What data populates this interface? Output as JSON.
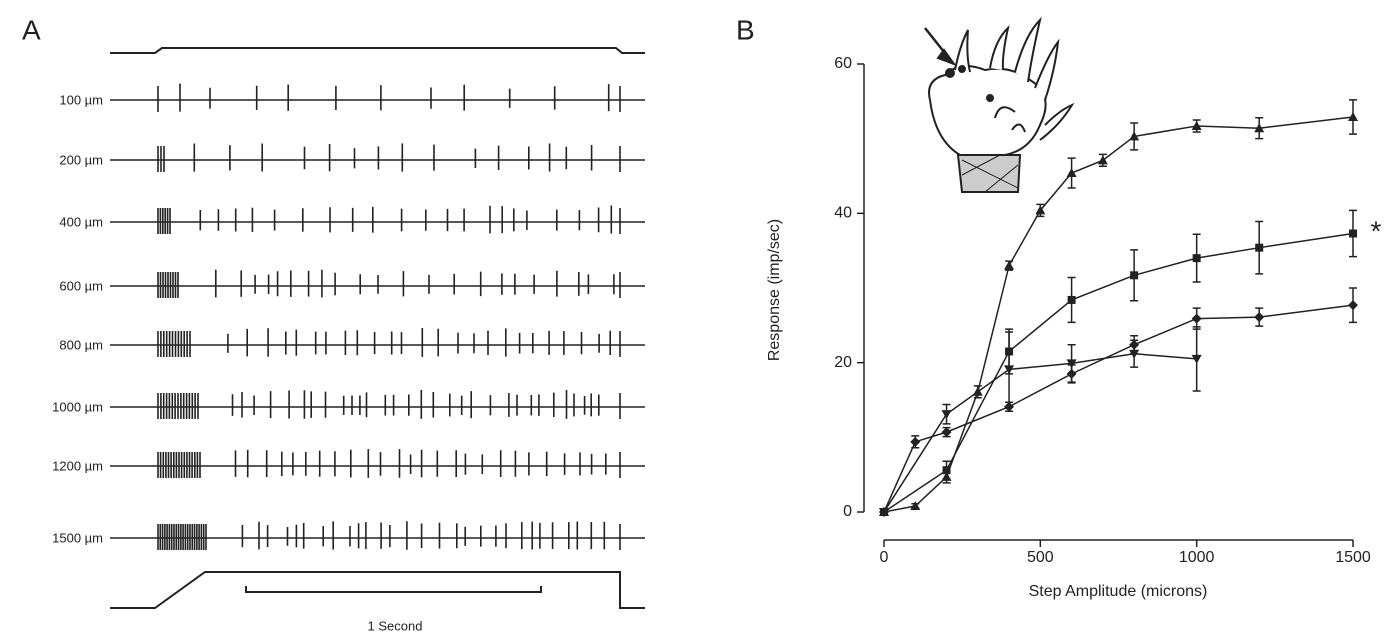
{
  "panel_a": {
    "label": "A",
    "traces": [
      "100 µm",
      "200 µm",
      "400 µm",
      "600 µm",
      "800 µm",
      "1000 µm",
      "1200 µm",
      "1500 µm"
    ],
    "scale_bar": "1 Second"
  },
  "chart_data": {
    "type": "line",
    "panel_label": "B",
    "x_label": "Step Amplitude (microns)",
    "y_label": "Response (imp/sec)",
    "annotation": "*",
    "xlim": [
      0,
      1500
    ],
    "xticks": [
      0,
      500,
      1000,
      1500
    ],
    "ylim": [
      0,
      60
    ],
    "yticks": [
      0,
      20,
      40,
      60
    ],
    "series": [
      {
        "marker": "triangle",
        "color": "#222222",
        "x": [
          0,
          100,
          200,
          300,
          400,
          500,
          600,
          700,
          800,
          1000,
          1200,
          1500
        ],
        "values": [
          0,
          0.8,
          4.7,
          16.1,
          33,
          40.4,
          45.4,
          47.1,
          50.3,
          51.7,
          51.4,
          52.9
        ],
        "errors": [
          0.3,
          0.3,
          0.8,
          0.8,
          0.6,
          0.8,
          2,
          0.8,
          1.8,
          0.8,
          1.4,
          2.3
        ]
      },
      {
        "marker": "square",
        "color": "#222222",
        "x": [
          0,
          200,
          400,
          600,
          800,
          1000,
          1200,
          1500
        ],
        "values": [
          0,
          5.6,
          21.5,
          28.4,
          31.7,
          34,
          35.4,
          37.3
        ],
        "errors": [
          0.3,
          1.2,
          3,
          3,
          3.4,
          3.2,
          3.5,
          3.1
        ]
      },
      {
        "marker": "diamond",
        "color": "#222222",
        "x": [
          0,
          100,
          200,
          400,
          600,
          800,
          1000,
          1200,
          1500
        ],
        "values": [
          0,
          9.4,
          10.7,
          14.1,
          18.5,
          22.4,
          25.9,
          26.1,
          27.7
        ],
        "errors": [
          0.3,
          0.8,
          0.6,
          0.6,
          1.2,
          1.2,
          1.4,
          1.2,
          2.3
        ]
      },
      {
        "marker": "triangle-down",
        "color": "#222222",
        "x": [
          0,
          200,
          400,
          600,
          800,
          1000
        ],
        "values": [
          0,
          13.1,
          19.1,
          19.9,
          21.2,
          20.5
        ],
        "errors": [
          0.3,
          1.3,
          5,
          2.5,
          1.8,
          4.3
        ]
      }
    ]
  }
}
